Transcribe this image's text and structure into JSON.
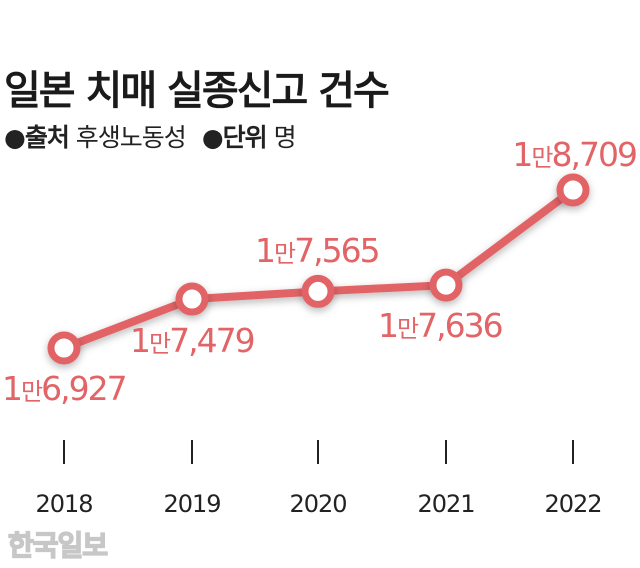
{
  "title": "일본 치매 실종신고 건수",
  "meta": {
    "bullet": "●",
    "source_key": "출처",
    "source_value": "후생노동성",
    "unit_key": "단위",
    "unit_value": "명"
  },
  "watermark": "한국일보",
  "colors": {
    "line": "#e26466",
    "label": "#e26466",
    "text": "#222222"
  },
  "chart_data": {
    "type": "line",
    "title": "일본 치매 실종신고 건수",
    "x": [
      "2018",
      "2019",
      "2020",
      "2021",
      "2022"
    ],
    "values": [
      16927,
      17479,
      17565,
      17636,
      18709
    ],
    "data_labels": [
      "1만6,927",
      "1만7,479",
      "1만7,565",
      "1만7,636",
      "1만8,709"
    ],
    "unit": "명",
    "grid": false,
    "legend": "none"
  }
}
